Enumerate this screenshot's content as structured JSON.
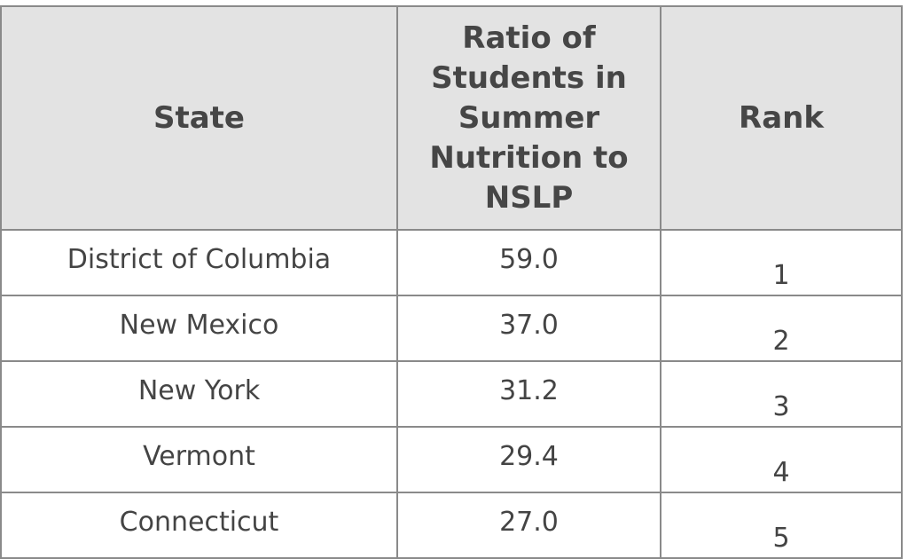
{
  "chart_data": {
    "type": "table",
    "columns": [
      "State",
      "Ratio of Students in Summer Nutrition to NSLP",
      "Rank"
    ],
    "rows": [
      {
        "state": "District of Columbia",
        "ratio": "59.0",
        "rank": "1"
      },
      {
        "state": "New Mexico",
        "ratio": "37.0",
        "rank": "2"
      },
      {
        "state": "New York",
        "ratio": "31.2",
        "rank": "3"
      },
      {
        "state": "Vermont",
        "ratio": "29.4",
        "rank": "4"
      },
      {
        "state": "Connecticut",
        "ratio": "27.0",
        "rank": "5"
      }
    ]
  },
  "colors": {
    "header_bg": "#e3e3e3",
    "border": "#8a8a8a",
    "text": "#444444"
  }
}
